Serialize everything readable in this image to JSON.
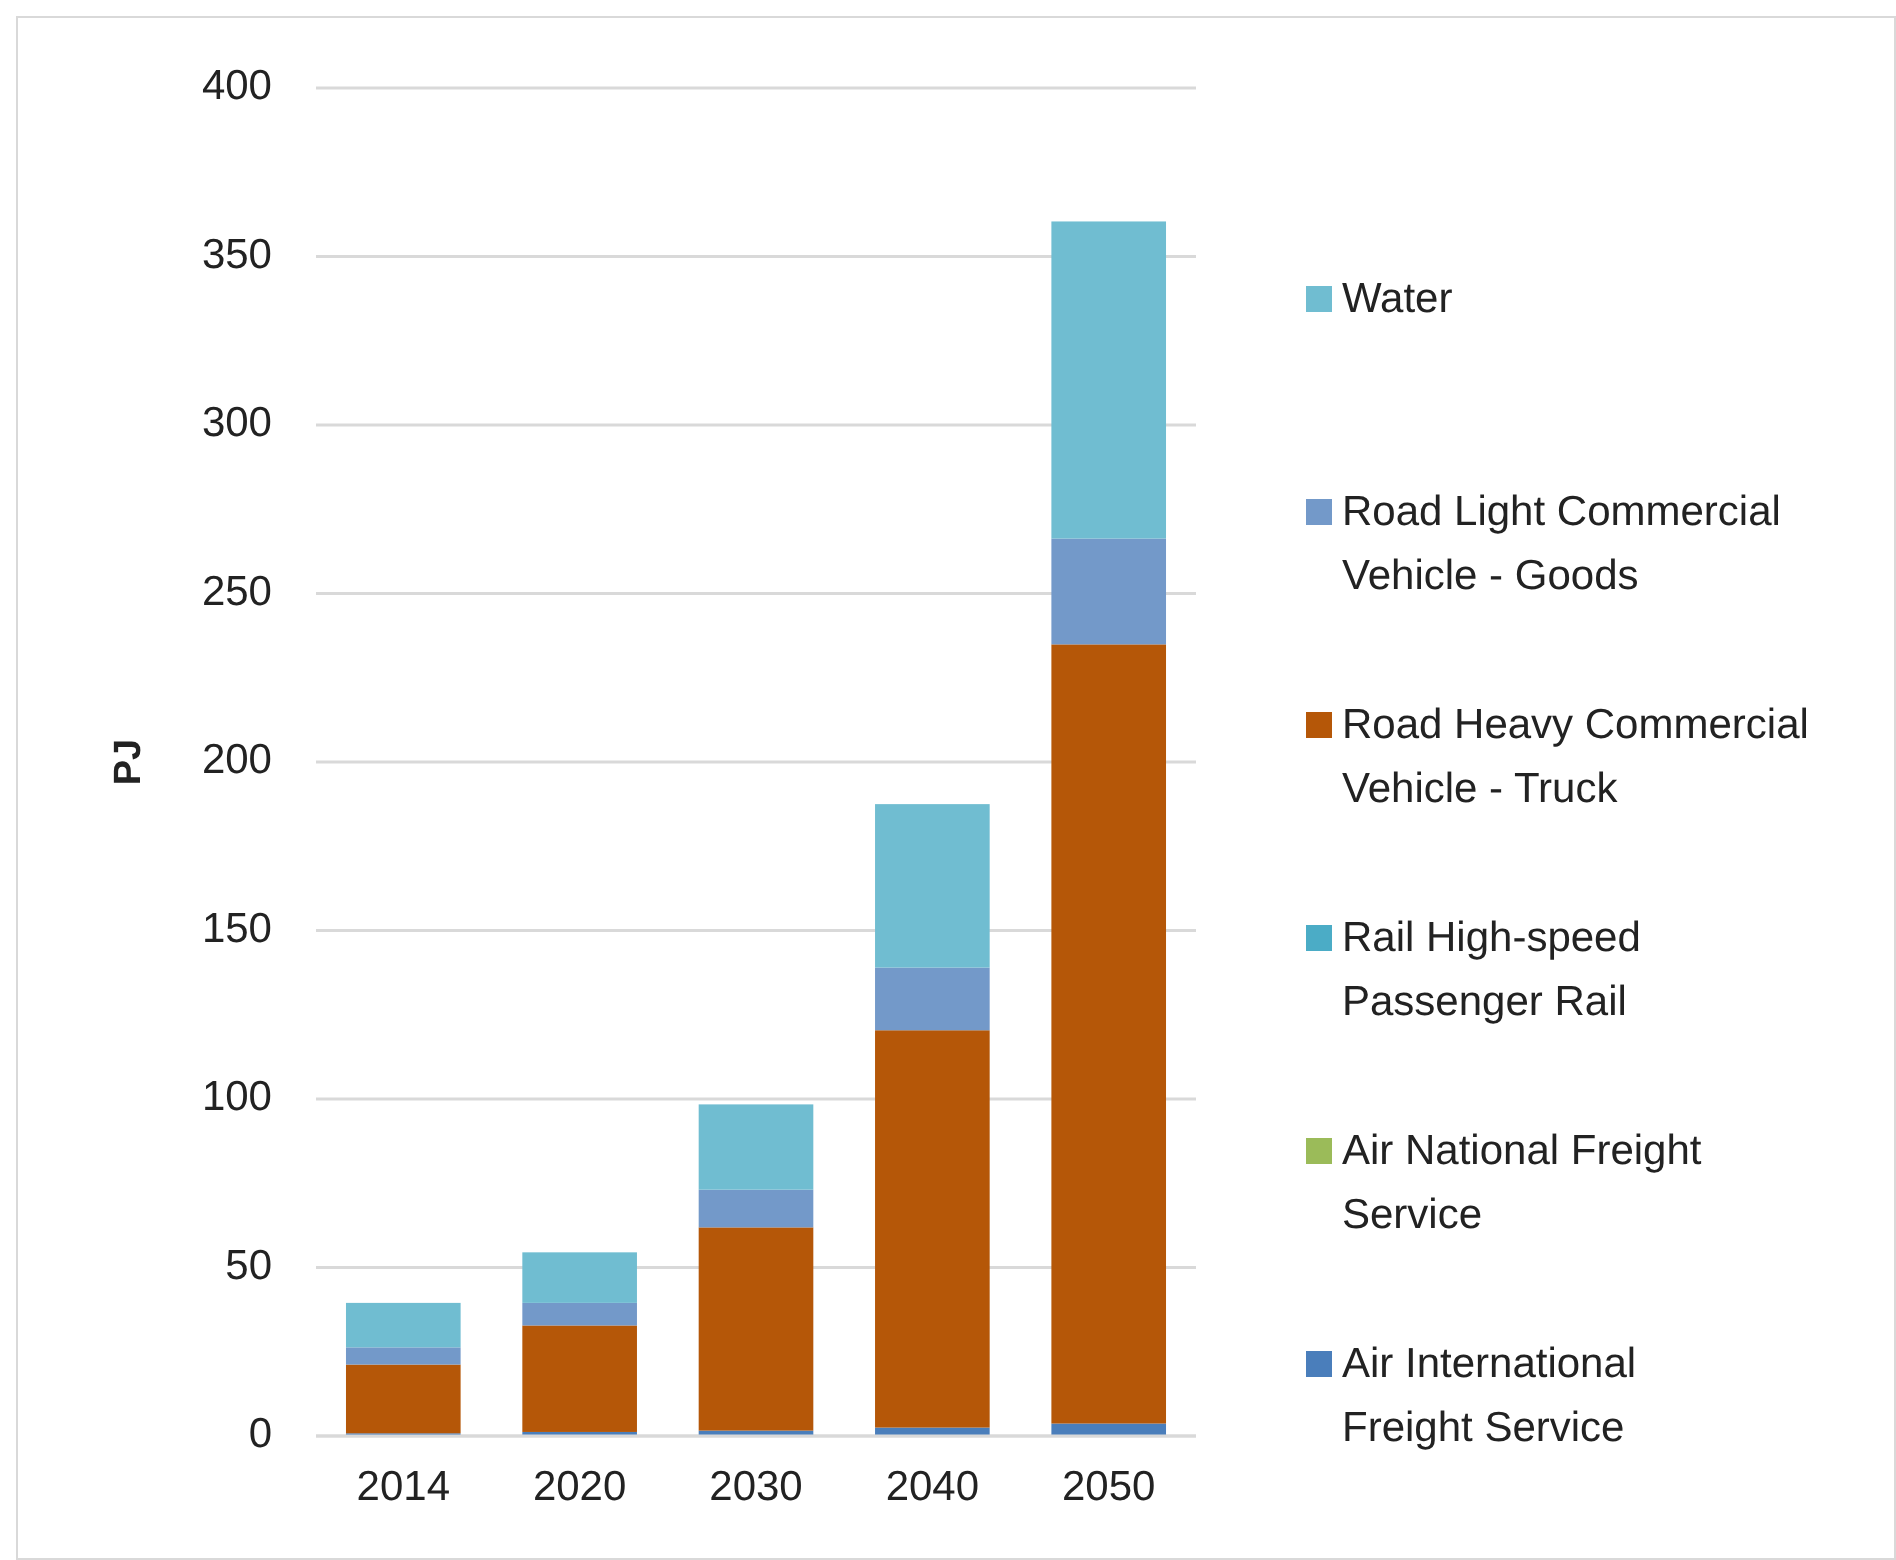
{
  "chart_data": {
    "type": "bar",
    "stacked": true,
    "ylabel": "PJ",
    "categories": [
      "2014",
      "2020",
      "2030",
      "2040",
      "2050"
    ],
    "ylim": [
      0,
      400
    ],
    "yticks": [
      0,
      50,
      100,
      150,
      200,
      250,
      300,
      350,
      400
    ],
    "grid": "y",
    "legend": "right",
    "series": [
      {
        "name": "Air International Freight Service",
        "color": "#4a7ebb",
        "values": [
          0.8,
          1.2,
          1.6,
          2.5,
          3.7
        ]
      },
      {
        "name": "Air National Freight Service",
        "color": "#9bbb59",
        "values": [
          0,
          0,
          0,
          0,
          0
        ]
      },
      {
        "name": "Rail High-speed Passenger Rail",
        "color": "#4bacc6",
        "values": [
          0,
          0,
          0,
          0,
          0
        ]
      },
      {
        "name": "Road Heavy Commercial Vehicle - Truck",
        "color": "#b55708",
        "values": [
          20.4,
          31.6,
          60.3,
          117.9,
          231.2
        ]
      },
      {
        "name": "Road Light Commercial Vehicle - Goods",
        "color": "#7399c9",
        "values": [
          5.1,
          6.7,
          11.2,
          18.6,
          31.4
        ]
      },
      {
        "name": "Water",
        "color": "#70bdd1",
        "values": [
          13.2,
          15.0,
          25.3,
          48.5,
          94.1
        ]
      }
    ]
  }
}
